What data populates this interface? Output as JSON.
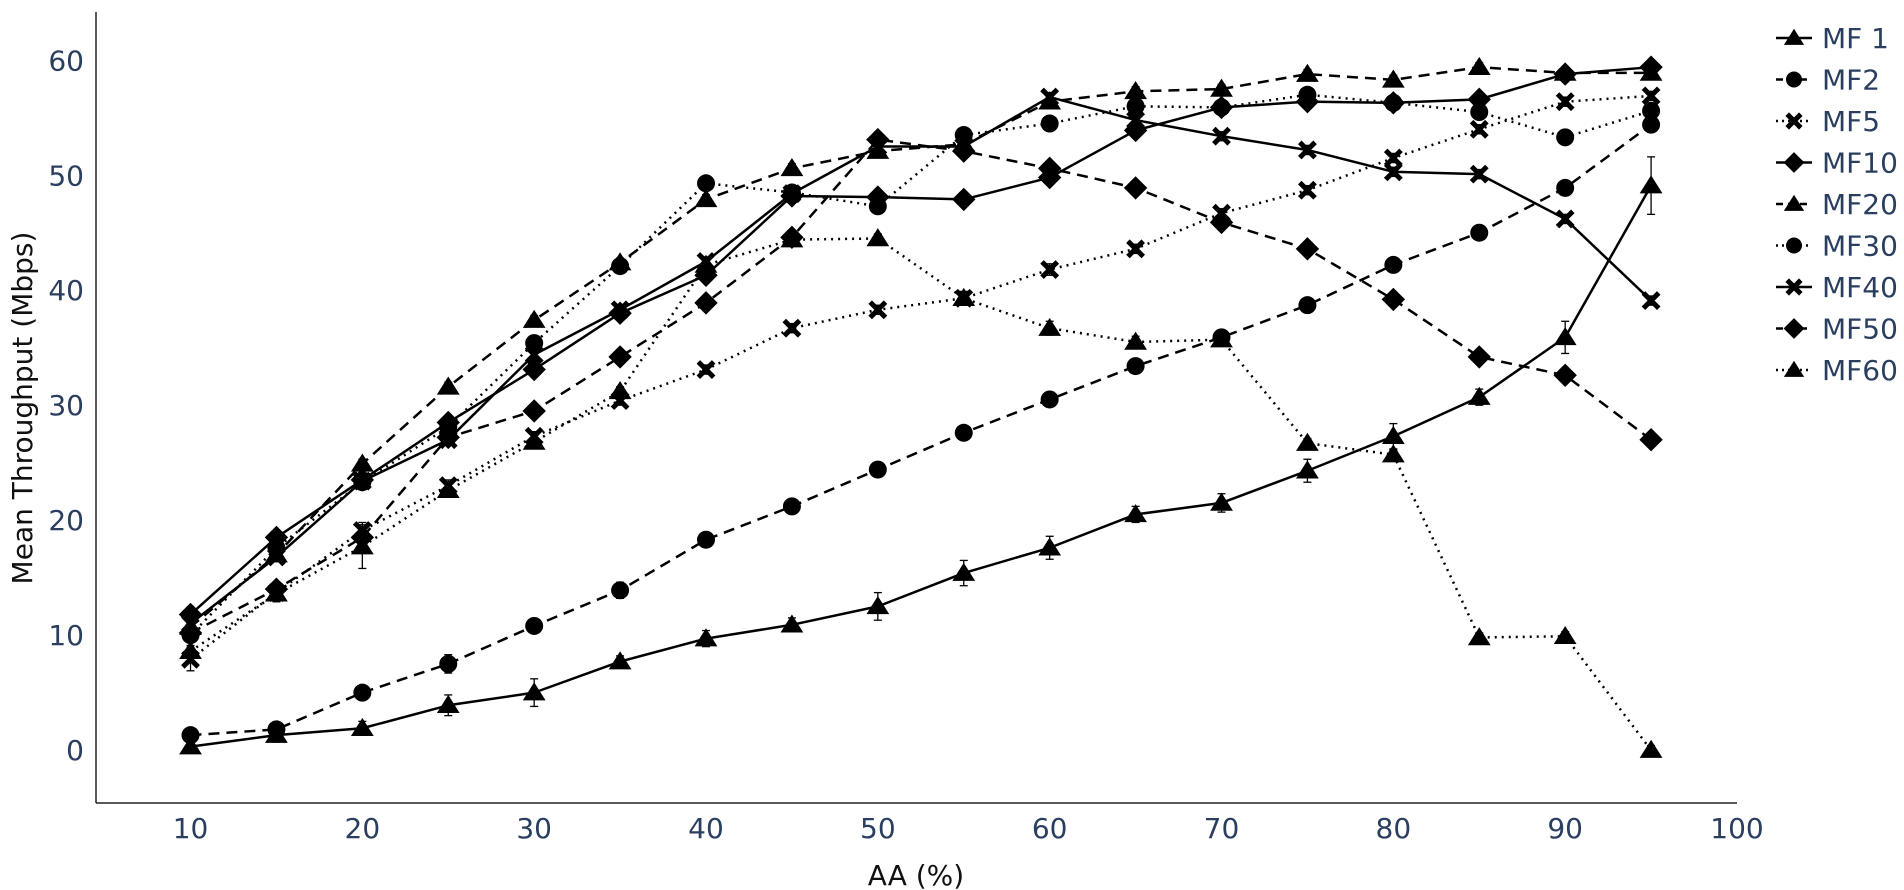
{
  "chart_data": {
    "type": "line",
    "title": "",
    "xlabel": "AA (%)",
    "ylabel": "Mean Throughput (Mbps)",
    "xlim": [
      4.5,
      100
    ],
    "ylim": [
      -4.6,
      64.2
    ],
    "x_ticks": [
      10,
      20,
      30,
      40,
      50,
      60,
      70,
      80,
      90,
      100
    ],
    "y_ticks": [
      0,
      10,
      20,
      30,
      40,
      50,
      60
    ],
    "grid": false,
    "legend_position": "top-right, outside plot",
    "line_color": "#000000",
    "tick_color": "#2a3f5f",
    "x": [
      10,
      15,
      20,
      25,
      30,
      35,
      40,
      45,
      50,
      55,
      60,
      65,
      70,
      75,
      80,
      85,
      90,
      95
    ],
    "series": [
      {
        "name": "MF 1",
        "marker": "triangle",
        "dash": "solid",
        "values": [
          0.3,
          1.3,
          1.9,
          3.9,
          5.0,
          7.7,
          9.7,
          10.9,
          12.5,
          15.4,
          17.6,
          20.5,
          21.5,
          24.3,
          27.3,
          30.7,
          35.9,
          49.1
        ],
        "errors": [
          0.4,
          0.6,
          0.6,
          0.9,
          1.2,
          0.5,
          0.7,
          0.6,
          1.2,
          1.1,
          1.0,
          0.7,
          0.8,
          1.0,
          1.1,
          0.7,
          1.4,
          2.5
        ]
      },
      {
        "name": "MF2",
        "marker": "circle",
        "dash": "dash",
        "values": [
          1.3,
          1.8,
          5.0,
          7.5,
          10.8,
          13.9,
          18.3,
          21.2,
          24.4,
          27.6,
          30.5,
          33.4,
          35.9,
          38.7,
          42.2,
          45.0,
          48.9,
          54.4
        ],
        "errors": [
          0.2,
          0.3,
          0.4,
          0.8,
          0.6,
          0.7,
          0.4,
          0.4,
          0.4,
          0.4,
          0.4,
          0.4,
          0.4,
          0.4,
          0.4,
          0.4,
          0.4,
          0.4
        ]
      },
      {
        "name": "MF5",
        "marker": "x",
        "dash": "dot",
        "values": [
          7.9,
          13.7,
          19.1,
          23.0,
          27.3,
          30.4,
          33.1,
          36.7,
          38.3,
          39.3,
          41.8,
          43.6,
          46.7,
          48.7,
          51.5,
          54.0,
          56.4,
          56.9
        ],
        "errors": [
          1.0,
          0.8,
          0.7,
          0.5,
          0.4,
          0.4,
          0.4,
          0.4,
          0.4,
          0.6,
          0.5,
          0.4,
          0.4,
          0.4,
          0.4,
          0.4,
          0.4,
          0.4
        ]
      },
      {
        "name": "MF10",
        "marker": "diamond",
        "dash": "solid",
        "values": [
          11.8,
          18.5,
          23.5,
          28.5,
          33.1,
          38.0,
          41.3,
          48.2,
          48.1,
          47.9,
          49.8,
          53.9,
          55.9,
          56.4,
          56.3,
          56.6,
          58.8,
          59.4
        ],
        "errors": [
          0.5,
          0.4,
          0.4,
          0.4,
          0.4,
          0.4,
          0.4,
          0.4,
          0.4,
          0.4,
          0.4,
          0.4,
          0.4,
          0.4,
          0.4,
          0.4,
          0.4,
          0.4
        ]
      },
      {
        "name": "MF20",
        "marker": "triangle",
        "dash": "dash",
        "values": [
          10.7,
          17.0,
          24.9,
          31.6,
          37.4,
          42.4,
          47.9,
          50.6,
          52.1,
          52.7,
          56.4,
          57.3,
          57.5,
          58.8,
          58.3,
          59.4,
          58.9,
          58.9
        ],
        "errors": [
          0.4,
          0.4,
          0.4,
          0.4,
          0.4,
          0.4,
          0.4,
          0.4,
          0.4,
          0.4,
          0.4,
          0.4,
          0.4,
          0.4,
          0.4,
          0.4,
          0.4,
          0.4
        ]
      },
      {
        "name": "MF30",
        "marker": "circle",
        "dash": "dot",
        "values": [
          10.0,
          17.6,
          23.3,
          28.1,
          35.4,
          42.1,
          49.3,
          48.5,
          47.3,
          53.5,
          54.5,
          56.0,
          55.9,
          57.0,
          56.3,
          55.5,
          53.3,
          55.6
        ],
        "errors": [
          0.4,
          0.4,
          0.4,
          0.4,
          0.4,
          0.4,
          0.4,
          0.4,
          0.4,
          0.4,
          0.4,
          0.4,
          0.4,
          0.4,
          0.4,
          0.4,
          0.4,
          0.4
        ]
      },
      {
        "name": "MF40",
        "marker": "x",
        "dash": "solid",
        "values": [
          11.0,
          16.8,
          23.4,
          27.0,
          34.4,
          38.3,
          42.5,
          48.4,
          52.5,
          52.5,
          56.8,
          54.8,
          53.4,
          52.2,
          50.3,
          50.1,
          46.2,
          39.1
        ],
        "errors": [
          0.4,
          0.4,
          0.4,
          0.4,
          0.4,
          0.4,
          0.4,
          0.4,
          0.4,
          0.4,
          0.4,
          0.4,
          0.4,
          0.4,
          0.4,
          0.4,
          0.4,
          0.4
        ]
      },
      {
        "name": "MF50",
        "marker": "diamond",
        "dash": "dash",
        "values": [
          10.2,
          14.0,
          18.5,
          27.2,
          29.5,
          34.2,
          38.9,
          44.6,
          53.1,
          52.1,
          50.6,
          48.9,
          45.9,
          43.6,
          39.2,
          34.2,
          32.6,
          27.0
        ],
        "errors": [
          0.4,
          0.4,
          0.4,
          0.4,
          0.4,
          0.4,
          0.4,
          0.4,
          0.4,
          0.4,
          0.4,
          0.4,
          0.4,
          0.4,
          0.4,
          0.4,
          0.4,
          0.4
        ]
      },
      {
        "name": "MF60",
        "marker": "triangle",
        "dash": "dot",
        "values": [
          8.6,
          13.6,
          17.7,
          22.6,
          26.8,
          31.2,
          42.2,
          44.4,
          44.5,
          39.3,
          36.7,
          35.5,
          35.7,
          26.7,
          25.7,
          9.8,
          9.9,
          0.0
        ],
        "errors": [
          0.5,
          0.6,
          1.9,
          0.5,
          0.4,
          0.4,
          0.4,
          0.4,
          0.4,
          0.4,
          0.6,
          0.5,
          0.4,
          0.4,
          0.4,
          0.4,
          0.4,
          0.4
        ]
      }
    ]
  }
}
